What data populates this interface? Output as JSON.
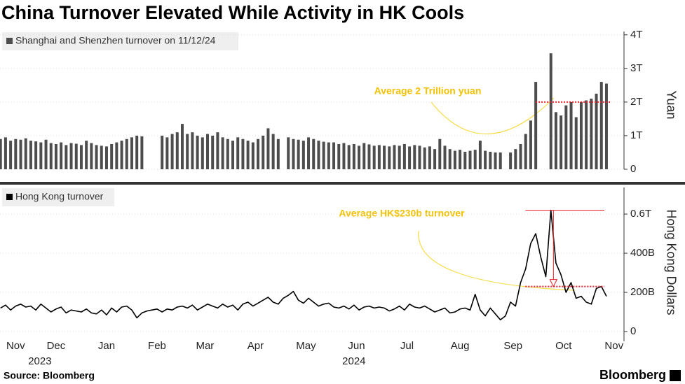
{
  "title": "China Turnover Elevated While Activity in HK Cools",
  "source": "Source: Bloomberg",
  "brand": "Bloomberg",
  "chart_data": [
    {
      "type": "bar",
      "series": [
        {
          "name": "Shanghai and Shenzhen turnover on 11/12/24",
          "color": "#4d4d4d",
          "values": [
            0.9,
            0.95,
            0.85,
            0.9,
            0.88,
            0.92,
            0.85,
            0.83,
            0.8,
            0.88,
            0.78,
            0.75,
            0.8,
            0.72,
            0.78,
            0.76,
            0.72,
            0.85,
            0.78,
            0.72,
            0.7,
            0.68,
            0.75,
            0.8,
            0.85,
            0.9,
            0.95,
            1.0,
            0.98,
            null,
            null,
            null,
            1.0,
            0.95,
            1.05,
            1.1,
            1.35,
            1.05,
            1.1,
            1.0,
            0.95,
            1.05,
            1.0,
            1.1,
            0.95,
            0.9,
            0.85,
            0.95,
            0.9,
            0.85,
            0.8,
            0.9,
            1.0,
            1.22,
            1.05,
            0.9,
            null,
            0.95,
            0.9,
            0.88,
            0.85,
            0.95,
            0.9,
            0.85,
            0.82,
            0.8,
            0.8,
            0.75,
            0.78,
            0.72,
            0.75,
            0.7,
            0.78,
            0.74,
            0.7,
            0.72,
            0.7,
            0.68,
            0.72,
            0.7,
            0.75,
            0.68,
            0.72,
            0.7,
            0.65,
            0.68,
            0.6,
            0.9,
            0.7,
            0.6,
            0.55,
            0.58,
            0.52,
            0.55,
            0.58,
            0.85,
            0.55,
            0.52,
            0.5,
            0.5,
            null,
            0.5,
            0.6,
            0.75,
            1.05,
            1.45,
            2.6,
            null,
            null,
            3.45,
            1.7,
            1.6,
            1.9,
            2.0,
            1.55,
            2.0,
            2.05,
            2.1,
            2.25,
            2.6,
            2.55
          ]
        }
      ],
      "x": [
        0.4,
        0.5,
        0.6,
        0.7,
        0.8,
        0.9,
        1.0,
        1.1,
        1.2,
        1.3,
        1.4,
        1.5,
        1.6,
        1.7,
        1.8,
        1.9,
        2.0,
        2.1,
        2.2,
        2.3,
        2.4,
        2.5,
        2.6,
        2.7,
        2.8,
        2.9,
        3.0,
        3.1,
        3.2,
        3.3,
        3.4,
        3.5,
        3.6,
        3.7,
        3.8,
        3.9,
        4.0,
        4.1,
        4.2,
        4.3,
        4.4,
        4.5,
        4.6,
        4.7,
        4.8,
        4.9,
        5.0,
        5.1,
        5.2,
        5.3,
        5.4,
        5.5,
        5.6,
        5.7,
        5.8,
        5.9,
        6.0,
        6.1,
        6.2,
        6.3,
        6.4,
        6.5,
        6.6,
        6.7,
        6.8,
        6.9,
        7.0,
        7.1,
        7.2,
        7.3,
        7.4,
        7.5,
        7.6,
        7.7,
        7.8,
        7.9,
        8.0,
        8.1,
        8.2,
        8.3,
        8.4,
        8.5,
        8.6,
        8.7,
        8.8,
        8.9,
        9.0,
        9.1,
        9.2,
        9.3,
        9.4,
        9.5,
        9.6,
        9.7,
        9.8,
        9.9,
        10.0,
        10.1,
        10.2,
        10.3,
        10.4,
        10.5,
        10.6,
        10.7,
        10.8,
        10.9,
        11.0,
        11.1,
        11.2,
        11.3,
        11.4,
        11.5,
        11.6,
        11.7,
        11.8,
        11.9,
        12.0,
        12.1,
        12.2,
        12.3,
        12.4
      ],
      "xlim": [
        0.39,
        12.47
      ],
      "ylim": [
        0,
        4.1
      ],
      "yticks": [
        {
          "value": 0,
          "label": "0"
        },
        {
          "value": 1,
          "label": "1T"
        },
        {
          "value": 2,
          "label": "2T"
        },
        {
          "value": 3,
          "label": "3T"
        },
        {
          "value": 4,
          "label": "4T"
        }
      ],
      "y_label": "Yuan",
      "annotation": "Average 2 Trillion yuan",
      "reference_line": {
        "value": 2,
        "x": [
          11.0,
          12.47
        ],
        "color": "#e8202a"
      }
    },
    {
      "type": "line",
      "series": [
        {
          "name": "Hong Kong turnover",
          "color": "#000000",
          "values": [
            120,
            135,
            110,
            130,
            140,
            125,
            130,
            110,
            140,
            120,
            100,
            115,
            125,
            95,
            110,
            105,
            100,
            115,
            95,
            90,
            110,
            85,
            120,
            100,
            125,
            130,
            110,
            70,
            95,
            105,
            110,
            115,
            100,
            115,
            110,
            125,
            130,
            120,
            135,
            110,
            125,
            140,
            130,
            120,
            140,
            125,
            135,
            110,
            140,
            150,
            130,
            145,
            160,
            175,
            150,
            140,
            170,
            185,
            205,
            160,
            145,
            170,
            150,
            130,
            140,
            145,
            125,
            120,
            130,
            115,
            135,
            110,
            125,
            130,
            120,
            125,
            120,
            105,
            115,
            130,
            110,
            140,
            125,
            120,
            130,
            115,
            100,
            110,
            120,
            95,
            100,
            115,
            120,
            110,
            190,
            110,
            80,
            120,
            90,
            60,
            80,
            150,
            130,
            250,
            320,
            450,
            500,
            380,
            280,
            620,
            350,
            290,
            200,
            250,
            170,
            180,
            150,
            140,
            220,
            230,
            180
          ]
        }
      ],
      "x": [
        0.4,
        0.5,
        0.6,
        0.7,
        0.8,
        0.9,
        1.0,
        1.1,
        1.2,
        1.3,
        1.4,
        1.5,
        1.6,
        1.7,
        1.8,
        1.9,
        2.0,
        2.1,
        2.2,
        2.3,
        2.4,
        2.5,
        2.6,
        2.7,
        2.8,
        2.9,
        3.0,
        3.1,
        3.2,
        3.3,
        3.4,
        3.5,
        3.6,
        3.7,
        3.8,
        3.9,
        4.0,
        4.1,
        4.2,
        4.3,
        4.4,
        4.5,
        4.6,
        4.7,
        4.8,
        4.9,
        5.0,
        5.1,
        5.2,
        5.3,
        5.4,
        5.5,
        5.6,
        5.7,
        5.8,
        5.9,
        6.0,
        6.1,
        6.2,
        6.3,
        6.4,
        6.5,
        6.6,
        6.7,
        6.8,
        6.9,
        7.0,
        7.1,
        7.2,
        7.3,
        7.4,
        7.5,
        7.6,
        7.7,
        7.8,
        7.9,
        8.0,
        8.1,
        8.2,
        8.3,
        8.4,
        8.5,
        8.6,
        8.7,
        8.8,
        8.9,
        9.0,
        9.1,
        9.2,
        9.3,
        9.4,
        9.5,
        9.6,
        9.7,
        9.8,
        9.9,
        10.0,
        10.1,
        10.2,
        10.3,
        10.4,
        10.5,
        10.6,
        10.7,
        10.8,
        10.9,
        11.0,
        11.1,
        11.2,
        11.3,
        11.4,
        11.5,
        11.6,
        11.7,
        11.8,
        11.9,
        12.0,
        12.1,
        12.2,
        12.3,
        12.4
      ],
      "xlim": [
        0.39,
        12.47
      ],
      "xticks": [
        {
          "value": 0.7,
          "label": "Nov"
        },
        {
          "value": 1.5,
          "label": "Dec"
        },
        {
          "value": 2.5,
          "label": "Jan"
        },
        {
          "value": 3.5,
          "label": "Feb"
        },
        {
          "value": 4.45,
          "label": "Mar"
        },
        {
          "value": 5.45,
          "label": "Apr"
        },
        {
          "value": 6.45,
          "label": "May"
        },
        {
          "value": 7.45,
          "label": "Jun"
        },
        {
          "value": 8.45,
          "label": "Jul"
        },
        {
          "value": 9.5,
          "label": "Aug"
        },
        {
          "value": 10.55,
          "label": "Sep"
        },
        {
          "value": 11.55,
          "label": "Oct"
        },
        {
          "value": 12.55,
          "label": "Nov"
        }
      ],
      "year_labels": [
        {
          "value": 1.18,
          "label": "2023"
        },
        {
          "value": 7.4,
          "label": "2024"
        }
      ],
      "ylim": [
        -50,
        736
      ],
      "yticks": [
        {
          "value": 0,
          "label": "0"
        },
        {
          "value": 200,
          "label": "200B"
        },
        {
          "value": 400,
          "label": "400B"
        },
        {
          "value": 600,
          "label": "0.6T"
        }
      ],
      "y_label": "Hong Kong Dollars",
      "annotation": "Average HK$230b turnover",
      "drop": {
        "from": 620,
        "to": 230,
        "x": 11.35,
        "end": 12.47,
        "color": "#e8202a"
      }
    }
  ]
}
